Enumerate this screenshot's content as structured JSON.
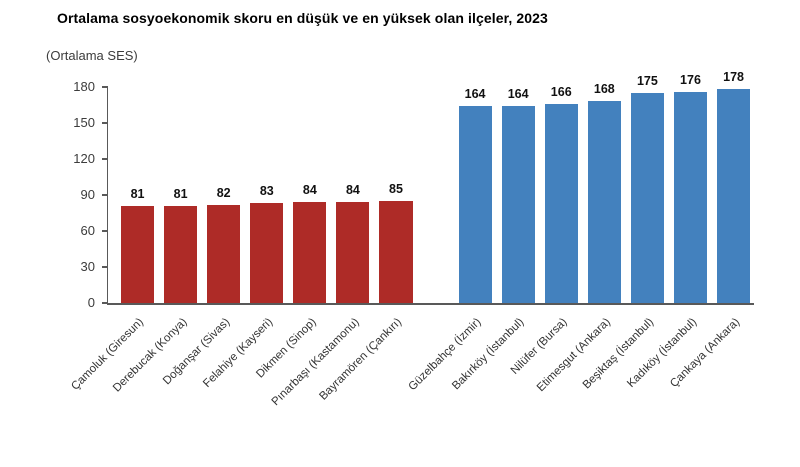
{
  "chart_data": {
    "type": "bar",
    "title": "Ortalama sosyoekonomik skoru en düşük ve en yüksek olan ilçeler, 2023",
    "unit_label": "(Ortalama SES)",
    "ylim": [
      0,
      180
    ],
    "yticks": [
      0,
      30,
      60,
      90,
      120,
      150,
      180
    ],
    "grid": false,
    "legend": "none",
    "groups": [
      {
        "name": "lowest-score-districts",
        "color": "#AE2B27",
        "categories": [
          "Çamoluk (Giresun)",
          "Derebucak (Konya)",
          "Doğanşar (Sivas)",
          "Felahiye (Kayseri)",
          "Dikmen (Sinop)",
          "Pınarbaşı (Kastamonu)",
          "Bayramören (Çankırı)"
        ],
        "values": [
          81,
          81,
          82,
          83,
          84,
          84,
          85
        ]
      },
      {
        "name": "highest-score-districts",
        "color": "#4381BE",
        "categories": [
          "Güzelbahçe (İzmir)",
          "Bakırköy (İstanbul)",
          "Nilüfer (Bursa)",
          "Etimesgut (Ankara)",
          "Beşiktaş (İstanbul)",
          "Kadıköy (İstanbul)",
          "Çankaya (Ankara)"
        ],
        "values": [
          164,
          164,
          166,
          168,
          175,
          176,
          178
        ]
      }
    ]
  }
}
